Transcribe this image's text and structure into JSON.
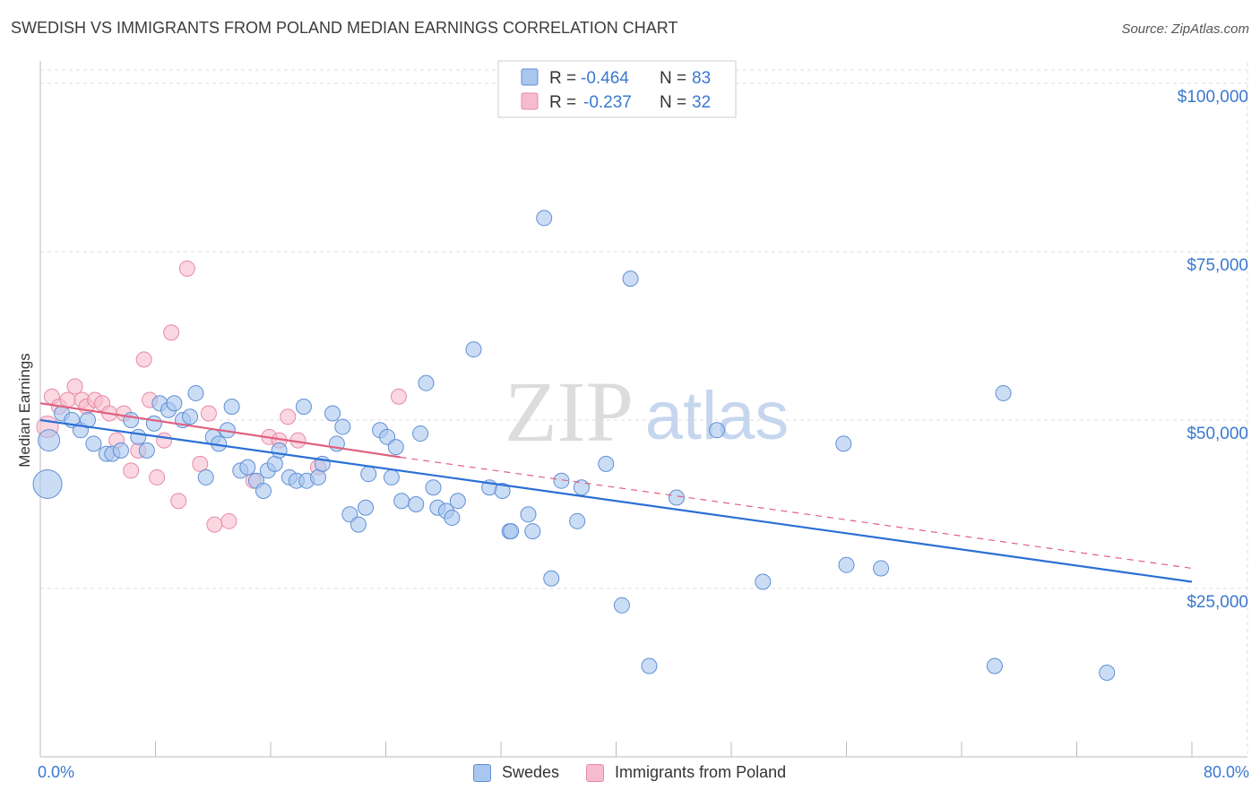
{
  "title": "SWEDISH VS IMMIGRANTS FROM POLAND MEDIAN EARNINGS CORRELATION CHART",
  "source": "Source: ZipAtlas.com",
  "watermark": {
    "zip": "ZIP",
    "atlas": "atlas"
  },
  "colors": {
    "swedes_fill": "#a9c6ef",
    "swedes_stroke": "#5f8fd6",
    "swedes_line": "#2a6fd6",
    "poland_fill": "#f6bccd",
    "poland_stroke": "#e889a6",
    "poland_line": "#e0607f",
    "axis_text": "#3a78d0",
    "grid": "#dddddd"
  },
  "legend_top": {
    "rows": [
      {
        "r_label": "R =",
        "r_value": "-0.464",
        "n_label": "N =",
        "n_value": "83"
      },
      {
        "r_label": "R =",
        "r_value": "-0.237",
        "n_label": "N =",
        "n_value": "32"
      }
    ]
  },
  "legend_bottom": [
    "Swedes",
    "Immigrants from Poland"
  ],
  "chart_data": {
    "type": "scatter",
    "xlabel": "",
    "ylabel": "Median Earnings",
    "xlim": [
      0,
      80
    ],
    "ylim": [
      0,
      102000
    ],
    "x_tick_labels": [
      "0.0%",
      "80.0%"
    ],
    "y_ticks": [
      25000,
      50000,
      75000,
      100000
    ],
    "y_tick_labels": [
      "$25,000",
      "$50,000",
      "$75,000",
      "$100,000"
    ],
    "series": [
      {
        "name": "Swedes",
        "r": -0.464,
        "n": 83,
        "trend": {
          "x": [
            0,
            80
          ],
          "y": [
            50000,
            26000
          ]
        },
        "points": [
          [
            0.5,
            40500,
            3
          ],
          [
            0.6,
            47000,
            2
          ],
          [
            1.5,
            51000,
            1
          ],
          [
            2.2,
            50000,
            1
          ],
          [
            2.8,
            48500,
            1
          ],
          [
            3.3,
            50000,
            1
          ],
          [
            3.7,
            46500,
            1
          ],
          [
            4.6,
            45000,
            1
          ],
          [
            5.0,
            45000,
            1
          ],
          [
            5.6,
            45500,
            1
          ],
          [
            6.3,
            50000,
            1
          ],
          [
            6.8,
            47500,
            1
          ],
          [
            7.4,
            45500,
            1
          ],
          [
            7.9,
            49500,
            1
          ],
          [
            8.3,
            52500,
            1
          ],
          [
            8.9,
            51500,
            1
          ],
          [
            9.3,
            52500,
            1
          ],
          [
            9.9,
            50000,
            1
          ],
          [
            10.4,
            50500,
            1
          ],
          [
            10.8,
            54000,
            1
          ],
          [
            11.5,
            41500,
            1
          ],
          [
            12.0,
            47500,
            1
          ],
          [
            12.4,
            46500,
            1
          ],
          [
            13.0,
            48500,
            1
          ],
          [
            13.3,
            52000,
            1
          ],
          [
            13.9,
            42500,
            1
          ],
          [
            14.4,
            43000,
            1
          ],
          [
            15.0,
            41000,
            1
          ],
          [
            15.5,
            39500,
            1
          ],
          [
            15.8,
            42500,
            1
          ],
          [
            16.3,
            43500,
            1
          ],
          [
            16.6,
            45500,
            1
          ],
          [
            17.3,
            41500,
            1
          ],
          [
            17.8,
            41000,
            1
          ],
          [
            18.3,
            52000,
            1
          ],
          [
            18.5,
            41000,
            1
          ],
          [
            19.3,
            41500,
            1
          ],
          [
            19.6,
            43500,
            1
          ],
          [
            20.3,
            51000,
            1
          ],
          [
            20.6,
            46500,
            1
          ],
          [
            21.0,
            49000,
            1
          ],
          [
            21.5,
            36000,
            1
          ],
          [
            22.1,
            34500,
            1
          ],
          [
            22.6,
            37000,
            1
          ],
          [
            22.8,
            42000,
            1
          ],
          [
            23.6,
            48500,
            1
          ],
          [
            24.1,
            47500,
            1
          ],
          [
            24.4,
            41500,
            1
          ],
          [
            24.7,
            46000,
            1
          ],
          [
            25.1,
            38000,
            1
          ],
          [
            26.1,
            37500,
            1
          ],
          [
            26.4,
            48000,
            1
          ],
          [
            26.8,
            55500,
            1
          ],
          [
            27.3,
            40000,
            1
          ],
          [
            27.6,
            37000,
            1
          ],
          [
            28.2,
            36500,
            1
          ],
          [
            28.6,
            35500,
            1
          ],
          [
            29.0,
            38000,
            1
          ],
          [
            30.1,
            60500,
            1
          ],
          [
            31.2,
            40000,
            1
          ],
          [
            32.1,
            39500,
            1
          ],
          [
            32.6,
            33500,
            1
          ],
          [
            32.7,
            33500,
            1
          ],
          [
            33.9,
            36000,
            1
          ],
          [
            34.2,
            33500,
            1
          ],
          [
            35.0,
            80000,
            1
          ],
          [
            35.5,
            26500,
            1
          ],
          [
            36.2,
            41000,
            1
          ],
          [
            37.3,
            35000,
            1
          ],
          [
            37.6,
            40000,
            1
          ],
          [
            39.3,
            43500,
            1
          ],
          [
            40.4,
            22500,
            1
          ],
          [
            41.0,
            71000,
            1
          ],
          [
            42.3,
            13500,
            1
          ],
          [
            44.2,
            38500,
            1
          ],
          [
            47.0,
            48500,
            1
          ],
          [
            50.2,
            26000,
            1
          ],
          [
            55.8,
            46500,
            1
          ],
          [
            56.0,
            28500,
            1
          ],
          [
            58.4,
            28000,
            1
          ],
          [
            66.9,
            54000,
            1
          ],
          [
            66.3,
            13500,
            1
          ],
          [
            74.1,
            12500,
            1
          ]
        ]
      },
      {
        "name": "Immigrants from Poland",
        "r": -0.237,
        "n": 32,
        "trend": {
          "x": [
            0,
            25
          ],
          "y": [
            52500,
            44500
          ]
        },
        "trend_dashed": {
          "x": [
            25,
            80
          ],
          "y": [
            44500,
            28000
          ]
        },
        "points": [
          [
            0.5,
            49000,
            2
          ],
          [
            0.8,
            53500,
            1
          ],
          [
            1.3,
            52000,
            1
          ],
          [
            1.9,
            53000,
            1
          ],
          [
            2.4,
            55000,
            1
          ],
          [
            2.9,
            53000,
            1
          ],
          [
            3.2,
            52000,
            1
          ],
          [
            3.8,
            53000,
            1
          ],
          [
            4.3,
            52500,
            1
          ],
          [
            4.8,
            51000,
            1
          ],
          [
            5.3,
            47000,
            1
          ],
          [
            5.8,
            51000,
            1
          ],
          [
            6.3,
            42500,
            1
          ],
          [
            6.8,
            45500,
            1
          ],
          [
            7.2,
            59000,
            1
          ],
          [
            7.6,
            53000,
            1
          ],
          [
            8.1,
            41500,
            1
          ],
          [
            8.6,
            47000,
            1
          ],
          [
            9.1,
            63000,
            1
          ],
          [
            9.6,
            38000,
            1
          ],
          [
            10.2,
            72500,
            1
          ],
          [
            11.1,
            43500,
            1
          ],
          [
            11.7,
            51000,
            1
          ],
          [
            12.1,
            34500,
            1
          ],
          [
            13.1,
            35000,
            1
          ],
          [
            14.8,
            41000,
            1
          ],
          [
            15.9,
            47500,
            1
          ],
          [
            16.6,
            47000,
            1
          ],
          [
            17.2,
            50500,
            1
          ],
          [
            17.9,
            47000,
            1
          ],
          [
            19.3,
            43000,
            1
          ],
          [
            24.9,
            53500,
            1
          ]
        ]
      }
    ]
  }
}
